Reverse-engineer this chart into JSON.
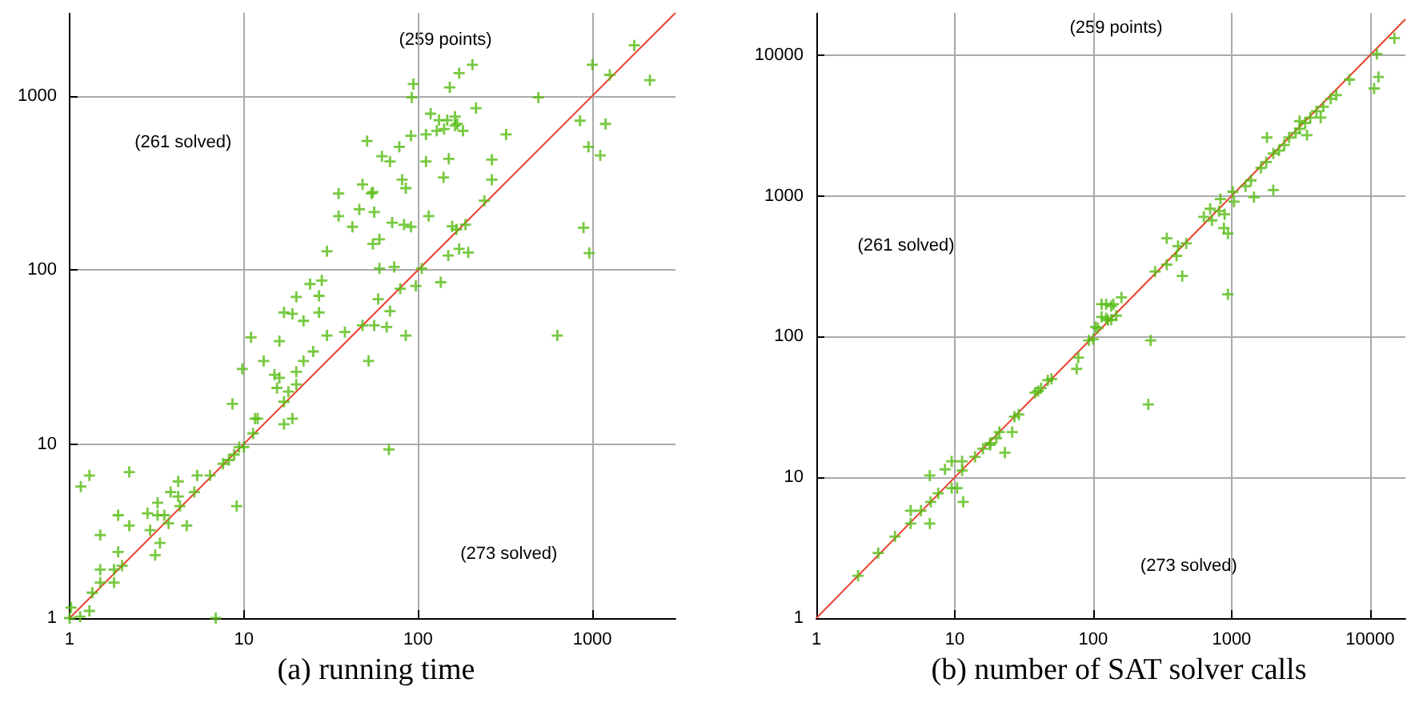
{
  "chart_data": [
    {
      "type": "scatter",
      "title": "(a) running time",
      "log": "xy",
      "grid": true,
      "marker": "cross",
      "xlim": [
        1,
        3000
      ],
      "ylim": [
        1,
        3000
      ],
      "xticks": [
        1,
        10,
        100,
        1000
      ],
      "yticks": [
        1,
        10,
        100,
        1000
      ],
      "annotations": [
        "(259 points)",
        "(261 solved)",
        "(273 solved)"
      ],
      "series": [
        {
          "color": "#55bb11",
          "x": [
            94,
            92,
            51,
            91,
            78,
            62,
            69,
            35,
            48,
            55,
            54,
            81,
            85,
            46,
            56,
            35,
            42,
            71,
            83,
            91,
            60,
            55,
            30,
            60,
            73,
            97,
            79,
            24,
            28,
            20,
            27,
            59,
            69,
            56,
            66,
            85,
            52,
            48,
            38,
            17,
            19,
            22,
            27,
            30,
            16,
            11,
            25,
            22,
            13,
            15,
            16,
            15.5,
            18,
            20,
            20,
            17,
            19,
            17,
            9.8,
            8.6,
            11.6,
            12,
            11.3,
            10,
            9.4,
            8.8,
            8.2,
            7.6,
            68,
            9.1,
            2.2,
            1.3,
            1.16,
            6.4,
            5.4,
            5.2,
            4.2,
            3.8,
            4.2,
            4.3,
            4.7,
            3.2,
            3.2,
            3.5,
            3.7,
            2.8,
            2.9,
            3.3,
            3.1,
            2.2,
            1.9,
            1.5,
            1.9,
            2,
            1.5,
            1.8,
            1.8,
            1.5,
            1.35,
            1.3,
            1.02,
            1.15,
            1,
            6.9,
            1740,
            1000,
            1260,
            2140,
            205,
            172,
            152,
            490,
            215,
            118,
            132,
            147,
            163,
            168,
            141,
            128,
            181,
            163,
            111,
            320,
            850,
            1190,
            950,
            1110,
            111,
            150,
            265,
            265,
            140,
            240,
            115,
            157,
            166,
            187,
            149,
            172,
            194,
            890,
            960,
            135,
            630,
            105
          ],
          "values": [
            1170,
            980,
            550,
            590,
            510,
            450,
            420,
            275,
            310,
            280,
            275,
            330,
            295,
            223,
            215,
            204,
            177,
            187,
            182,
            177,
            150,
            141,
            128,
            102,
            104,
            81,
            78,
            83,
            87,
            70,
            71,
            68,
            58,
            48,
            47,
            42,
            30,
            48,
            44,
            57,
            56,
            51,
            57,
            42,
            39,
            41,
            34,
            30,
            30,
            25,
            24,
            21,
            20,
            26,
            22,
            17.5,
            14,
            13,
            27,
            17,
            14,
            14,
            11.5,
            9.6,
            9.6,
            8.7,
            8.1,
            7.7,
            9.3,
            4.4,
            6.9,
            6.6,
            5.7,
            6.6,
            6.6,
            5.3,
            6.1,
            5.3,
            5,
            4.4,
            3.4,
            4.6,
            3.9,
            3.9,
            3.5,
            4,
            3.2,
            2.7,
            2.3,
            3.4,
            3.9,
            3,
            2.4,
            2,
            1.9,
            1.9,
            1.6,
            1.6,
            1.4,
            1.1,
            1.15,
            1.02,
            1,
            1,
            1950,
            1510,
            1320,
            1230,
            1510,
            1350,
            1120,
            980,
            850,
            790,
            725,
            725,
            760,
            690,
            645,
            630,
            630,
            675,
            600,
            600,
            720,
            690,
            510,
            455,
            420,
            435,
            430,
            330,
            340,
            250,
            204,
            178,
            171,
            182,
            121,
            132,
            126,
            175,
            125,
            85,
            42,
            102
          ]
        },
        {
          "type": "line",
          "color": "#e8412c",
          "marker": "none",
          "x": [
            1,
            3000
          ],
          "values": [
            1,
            3000
          ]
        }
      ]
    },
    {
      "type": "scatter",
      "title": "(b) number of SAT solver calls",
      "log": "xy",
      "grid": true,
      "marker": "cross",
      "xlim": [
        1,
        18000
      ],
      "ylim": [
        1,
        20000
      ],
      "xticks": [
        1,
        10,
        100,
        1000,
        10000
      ],
      "yticks": [
        1,
        10,
        100,
        1000,
        10000
      ],
      "annotations": [
        "(259 points)",
        "(261 solved)",
        "(273 solved)"
      ],
      "series": [
        {
          "color": "#55bb11",
          "x": [
            2,
            2.8,
            3.7,
            4.8,
            4.8,
            5.7,
            6.6,
            6.7,
            7.6,
            6.6,
            8.5,
            9.5,
            9.5,
            10.4,
            11.5,
            11.3,
            11.3,
            14,
            16,
            18,
            20,
            21,
            18,
            23,
            26,
            29,
            27,
            38,
            40,
            42,
            47,
            50,
            78,
            76,
            93,
            104,
            115,
            115,
            128,
            135,
            15000,
            11200,
            11500,
            10700,
            7100,
            5700,
            5200,
            4600,
            4100,
            3700,
            3400,
            3100,
            2900,
            2600,
            2400,
            2200,
            2000,
            3100,
            3500,
            4400,
            1800,
            2000,
            1450,
            1780,
            1630,
            1380,
            1260,
            1020,
            1040,
            830,
            810,
            880,
            940,
            890,
            700,
            630,
            720,
            940,
            340,
            410,
            470,
            400,
            440,
            340,
            280,
            260,
            250,
            160,
            140,
            124,
            147,
            135,
            124,
            108,
            100
          ],
          "values": [
            2,
            2.9,
            3.8,
            4.7,
            5.8,
            5.8,
            4.7,
            6.7,
            7.7,
            10.3,
            11.4,
            13,
            8.4,
            8.4,
            6.7,
            13,
            11.2,
            14,
            16,
            17.5,
            19,
            21,
            17,
            15,
            21,
            28,
            27,
            40,
            41,
            43,
            49,
            50,
            71,
            59,
            94,
            117,
            170,
            138,
            131,
            165,
            13200,
            10200,
            7000,
            5800,
            6700,
            5200,
            4900,
            4300,
            4000,
            3600,
            3300,
            3000,
            2800,
            2600,
            2300,
            2100,
            2000,
            3400,
            2700,
            3600,
            2600,
            1100,
            980,
            1740,
            1580,
            1290,
            1170,
            1070,
            910,
            950,
            780,
            590,
            540,
            740,
            810,
            710,
            670,
            200,
            500,
            440,
            460,
            375,
            270,
            325,
            290,
            94,
            33,
            190,
            170,
            170,
            141,
            132,
            135,
            115,
            96
          ]
        },
        {
          "type": "line",
          "color": "#e8412c",
          "marker": "none",
          "x": [
            1,
            18000
          ],
          "values": [
            1,
            18000
          ]
        }
      ]
    }
  ]
}
